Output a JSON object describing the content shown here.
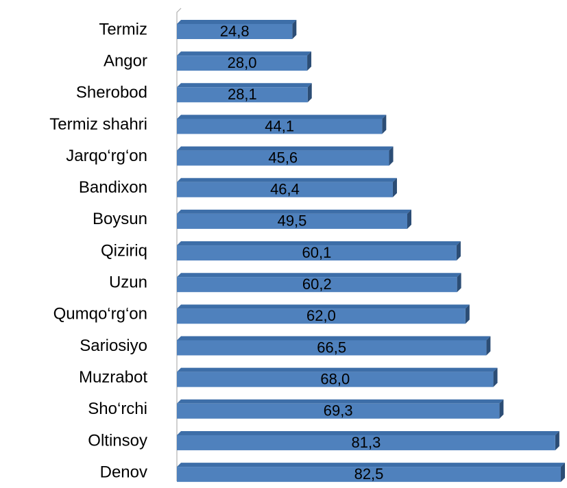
{
  "chart_data": {
    "type": "bar",
    "orientation": "horizontal",
    "categories": [
      "Termiz",
      "Angor",
      "Sherobod",
      "Termiz shahri",
      "Jarqo‘rg‘on",
      "Bandixon",
      "Boysun",
      "Qiziriq",
      "Uzun",
      "Qumqo‘rg‘on",
      "Sariosiyo",
      "Muzrabot",
      "Sho‘rchi",
      "Oltinsoy",
      "Denov"
    ],
    "values": [
      24.8,
      28.0,
      28.1,
      44.1,
      45.6,
      46.4,
      49.5,
      60.1,
      60.2,
      62.0,
      66.5,
      68.0,
      69.3,
      81.3,
      82.5
    ],
    "value_labels": [
      "24,8",
      "28,0",
      "28,1",
      "44,1",
      "45,6",
      "46,4",
      "49,5",
      "60,1",
      "60,2",
      "62,0",
      "66,5",
      "68,0",
      "69,3",
      "81,3",
      "82,5"
    ],
    "color": "#4f81bd"
  }
}
